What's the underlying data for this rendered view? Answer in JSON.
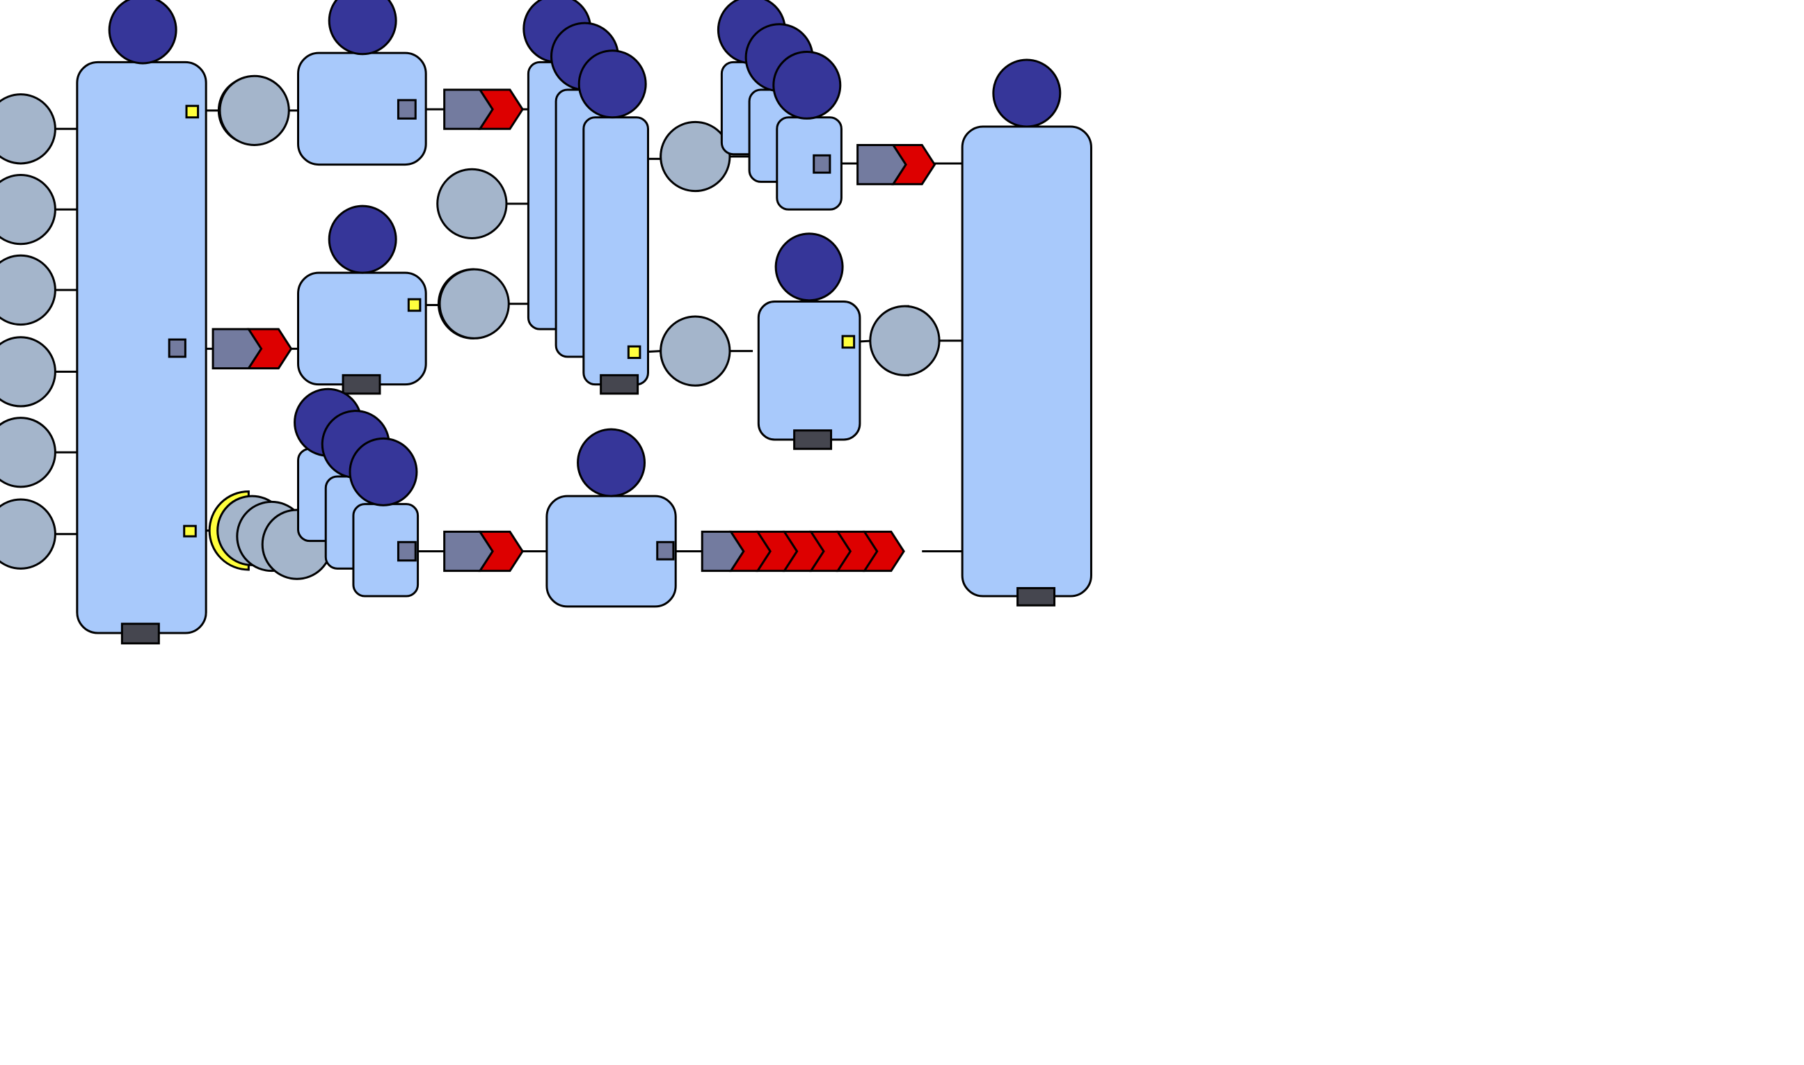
{
  "colors": {
    "background": "#ffffff",
    "module_fill": "#a8c9fb",
    "stroke": "#000000",
    "cap_circle": "#363699",
    "node_circle": "#a4b5cb",
    "bracket": "#ffff3d",
    "connector_box": "#ffff3d",
    "port_box": "#737b9f",
    "arrow_base": "#737b9f",
    "arrow_head": "#dd0000",
    "footer_block": "#45464f"
  },
  "glyphs": {
    "cap": "circle",
    "node": "circle",
    "port": "square",
    "arrow": "chevron",
    "bracket": "half-ring"
  }
}
